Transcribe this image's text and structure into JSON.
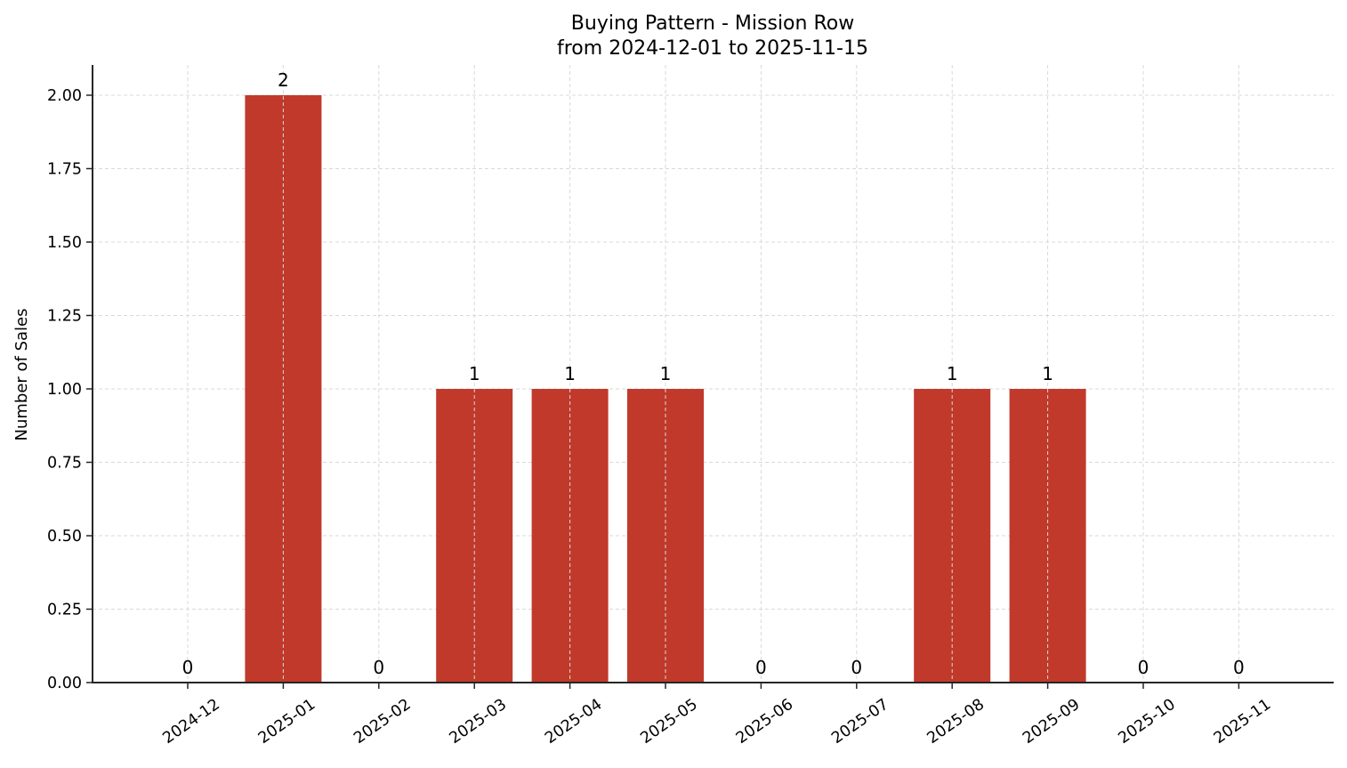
{
  "chart_data": {
    "type": "bar",
    "title": "Buying Pattern - Mission Row",
    "subtitle": "from 2024-12-01 to 2025-11-15",
    "xlabel": "",
    "ylabel": "Number of Sales",
    "categories": [
      "2024-12",
      "2025-01",
      "2025-02",
      "2025-03",
      "2025-04",
      "2025-05",
      "2025-06",
      "2025-07",
      "2025-08",
      "2025-09",
      "2025-10",
      "2025-11"
    ],
    "values": [
      0,
      2,
      0,
      1,
      1,
      1,
      0,
      0,
      1,
      1,
      0,
      0
    ],
    "bar_labels": [
      "0",
      "2",
      "0",
      "1",
      "1",
      "1",
      "0",
      "0",
      "1",
      "1",
      "0",
      "0"
    ],
    "ylim": [
      0,
      2.1
    ],
    "yticks": [
      0.0,
      0.25,
      0.5,
      0.75,
      1.0,
      1.25,
      1.5,
      1.75,
      2.0
    ],
    "ytick_labels": [
      "0.00",
      "0.25",
      "0.50",
      "0.75",
      "1.00",
      "1.25",
      "1.50",
      "1.75",
      "2.00"
    ],
    "grid": true,
    "legend": null,
    "colors": {
      "bar": "#c0392b",
      "grid": "#d9d9d9",
      "axis": "#262626"
    }
  }
}
